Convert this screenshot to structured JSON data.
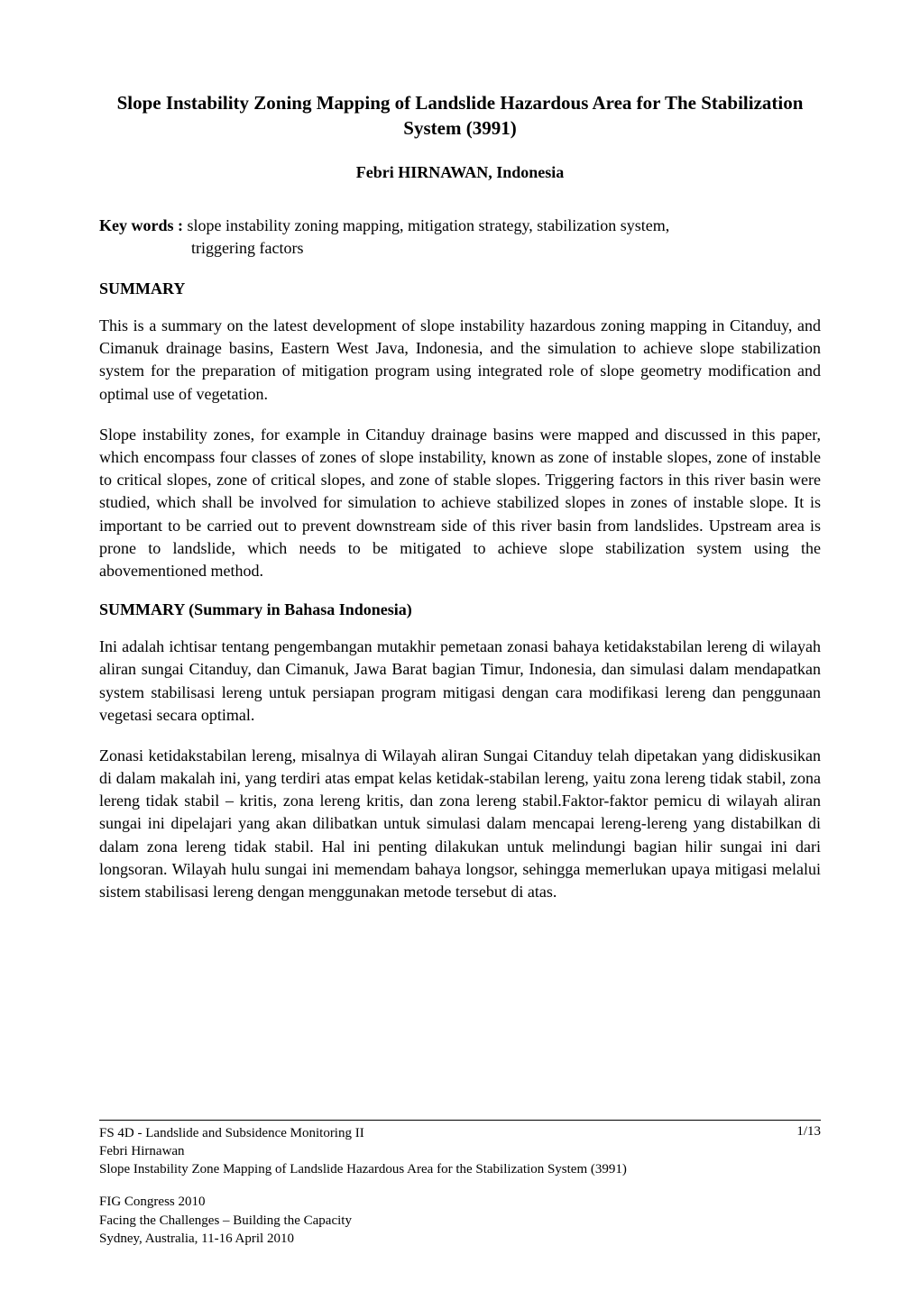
{
  "title": "Slope Instability Zoning Mapping of Landslide Hazardous Area for The Stabilization System (3991)",
  "author": "Febri HIRNAWAN, Indonesia",
  "keywords": {
    "label": "Key words :",
    "line1": " slope instability zoning mapping, mitigation strategy, stabilization system,",
    "line2": "triggering factors"
  },
  "summary": {
    "heading": "SUMMARY",
    "p1": "This is a summary on the latest development of slope instability hazardous zoning mapping in Citanduy, and Cimanuk  drainage basins, Eastern West Java, Indonesia,  and the simulation to achieve slope stabilization system for the preparation of mitigation program using integrated role of slope geometry modification and optimal use of vegetation.",
    "p2": "Slope instability zones, for example in Citanduy drainage basins were mapped and discussed in this paper, which encompass four classes of zones of slope instability, known as zone of instable slopes, zone of instable to critical slopes, zone of critical slopes, and zone of stable slopes. Triggering factors in this river basin were studied, which shall be involved for simulation to achieve stabilized slopes in zones of instable slope. It is important to be carried out to prevent downstream side of this river basin from landslides. Upstream area  is prone to  landslide, which needs to be mitigated to achieve slope stabilization system using the abovementioned method."
  },
  "summary_id": {
    "heading": " SUMMARY (Summary in Bahasa Indonesia)",
    "p1": "Ini adalah ichtisar tentang pengembangan mutakhir pemetaan zonasi bahaya ketidakstabilan lereng di wilayah aliran sungai  Citanduy, dan Cimanuk, Jawa Barat bagian Timur, Indonesia, dan simulasi dalam mendapatkan system stabilisasi lereng untuk persiapan program mitigasi dengan cara modifikasi lereng dan penggunaan vegetasi secara optimal.",
    "p2": "Zonasi ketidakstabilan lereng, misalnya di Wilayah aliran Sungai Citanduy telah dipetakan yang didiskusikan di dalam makalah ini, yang terdiri atas empat kelas ketidak-stabilan lereng, yaitu zona lereng tidak stabil, zona lereng tidak stabil – kritis, zona lereng kritis, dan zona lereng stabil.Faktor-faktor pemicu di wilayah aliran sungai ini dipelajari yang akan dilibatkan untuk simulasi dalam mencapai lereng-lereng yang distabilkan di dalam zona lereng tidak stabil. Hal ini penting dilakukan untuk melindungi bagian hilir sungai ini dari longsoran. Wilayah hulu sungai ini memendam bahaya longsor, sehingga memerlukan upaya mitigasi melalui sistem stabilisasi lereng dengan menggunakan metode tersebut di atas."
  },
  "footer": {
    "session": "FS 4D - Landslide and Subsidence Monitoring II",
    "author_name": "Febri Hirnawan",
    "paper_title": "Slope Instability Zone Mapping of Landslide Hazardous Area for the Stabilization System (3991)",
    "conference": "FIG Congress 2010",
    "theme": "Facing the Challenges – Building the Capacity",
    "location": "Sydney, Australia, 11-16 April 2010",
    "page": "1/13"
  },
  "style": {
    "background_color": "#ffffff",
    "text_color": "#000000",
    "font_family": "Times New Roman",
    "title_fontsize": 21,
    "body_fontsize": 18,
    "footer_fontsize": 15
  }
}
